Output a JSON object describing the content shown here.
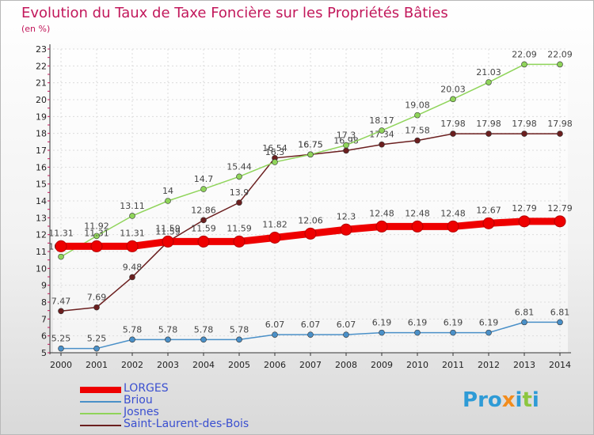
{
  "title": "Evolution du Taux de Taxe Foncière sur les Propriétés Bâties",
  "unit_label": "(en %)",
  "logo": {
    "text": "Proxiti",
    "letter_colors": [
      "#2e9bd6",
      "#2e9bd6",
      "#2e9bd6",
      "#f28c1c",
      "#2e9bd6",
      "#8cc63f",
      "#2e9bd6"
    ]
  },
  "chart_data": {
    "type": "line",
    "categories": [
      "2000",
      "2001",
      "2002",
      "2003",
      "2004",
      "2005",
      "2006",
      "2007",
      "2008",
      "2009",
      "2010",
      "2011",
      "2012",
      "2013",
      "2014"
    ],
    "ylim": [
      5,
      23
    ],
    "yticks": [
      5,
      6,
      7,
      8,
      9,
      10,
      11,
      12,
      13,
      14,
      15,
      16,
      17,
      18,
      19,
      20,
      21,
      22,
      23
    ],
    "grid": true,
    "legend_position": "bottom-left",
    "series": [
      {
        "name": "Saint-Laurent-des-Bois",
        "color": "#6b1f1f",
        "values": [
          7.47,
          7.69,
          9.48,
          11.59,
          12.86,
          13.9,
          16.54,
          16.75,
          16.98,
          17.34,
          17.58,
          17.98,
          17.98,
          17.98,
          17.98
        ],
        "labels": [
          "7.47",
          "7.69",
          "9.48",
          "11.59",
          "12.86",
          "13.9",
          "16.54",
          "16.75",
          "16.98",
          "17.34",
          "17.58",
          "17.98",
          "17.98",
          "17.98",
          "17.98"
        ]
      },
      {
        "name": "Josnes",
        "color": "#8fd45a",
        "values": [
          10.69,
          11.92,
          13.11,
          14,
          14.7,
          15.44,
          16.3,
          16.75,
          17.3,
          18.17,
          19.08,
          20.03,
          21.03,
          22.09,
          22.09
        ],
        "labels": [
          "10.69",
          "11.92",
          "13.11",
          "14",
          "14.7",
          "15.44",
          "16.3",
          "16.75",
          "17.3",
          "18.17",
          "19.08",
          "20.03",
          "21.03",
          "22.09",
          "22.09"
        ]
      },
      {
        "name": "Briou",
        "color": "#4a90c8",
        "values": [
          5.25,
          5.25,
          5.78,
          5.78,
          5.78,
          5.78,
          6.07,
          6.07,
          6.07,
          6.19,
          6.19,
          6.19,
          6.19,
          6.81,
          6.81
        ],
        "labels": [
          "5.25",
          "5.25",
          "5.78",
          "5.78",
          "5.78",
          "5.78",
          "6.07",
          "6.07",
          "6.07",
          "6.19",
          "6.19",
          "6.19",
          "6.19",
          "6.81",
          "6.81"
        ]
      },
      {
        "name": "LORGES",
        "color": "#ee0000",
        "values": [
          11.31,
          11.31,
          11.31,
          11.59,
          11.59,
          11.59,
          11.82,
          12.06,
          12.3,
          12.48,
          12.48,
          12.48,
          12.67,
          12.79,
          12.79
        ],
        "labels": [
          "11.31",
          "11.31",
          "11.31",
          "11.59",
          "11.59",
          "11.59",
          "11.82",
          "12.06",
          "12.3",
          "12.48",
          "12.48",
          "12.48",
          "12.67",
          "12.79",
          "12.79"
        ]
      }
    ],
    "legend": [
      {
        "name": "LORGES",
        "color": "#ee0000"
      },
      {
        "name": "Briou",
        "color": "#4a90c8"
      },
      {
        "name": "Josnes",
        "color": "#8fd45a"
      },
      {
        "name": "Saint-Laurent-des-Bois",
        "color": "#6b1f1f"
      }
    ]
  }
}
